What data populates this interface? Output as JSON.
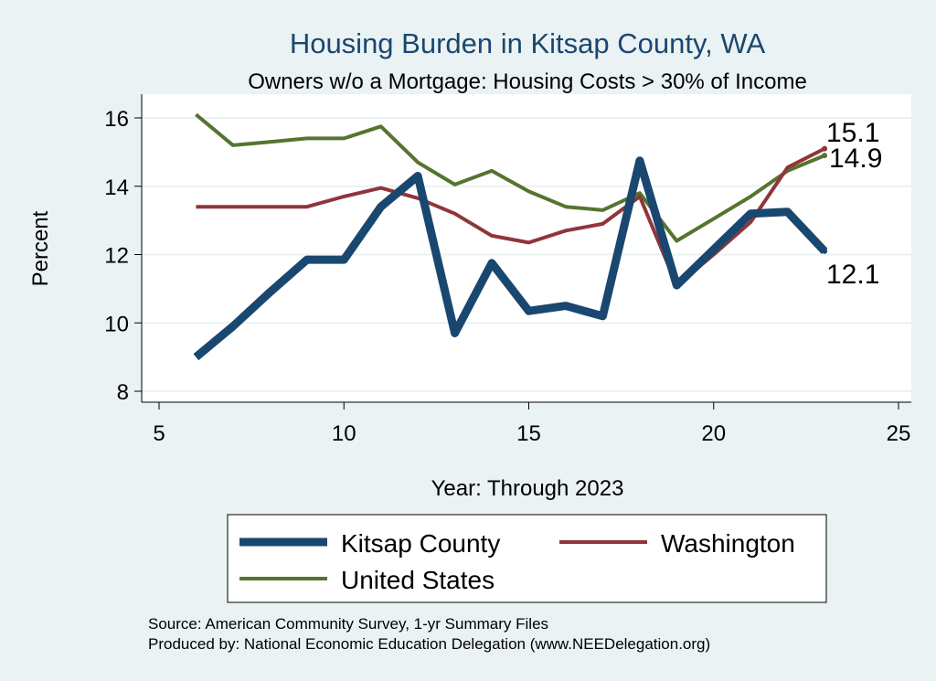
{
  "chart_data": {
    "type": "line",
    "title": "Housing Burden in Kitsap County, WA",
    "subtitle": "Owners w/o a Mortgage: Housing Costs > 30% of Income",
    "xlabel": "Year: Through 2023",
    "ylabel": "Percent",
    "xlim": [
      5,
      25
    ],
    "ylim": [
      7.5,
      16.5
    ],
    "xticks": [
      5,
      10,
      15,
      20,
      25
    ],
    "yticks": [
      8,
      10,
      12,
      14,
      16
    ],
    "grid": true,
    "legend_position": "bottom",
    "series": [
      {
        "name": "Kitsap County",
        "color": "#1a476f",
        "x": [
          6,
          7,
          8,
          9,
          10,
          11,
          12,
          13,
          14,
          15,
          16,
          17,
          18,
          19,
          20,
          21,
          22,
          23
        ],
        "values": [
          9.0,
          9.9,
          10.9,
          11.85,
          11.85,
          13.4,
          14.3,
          9.7,
          11.75,
          10.35,
          10.5,
          10.2,
          14.75,
          11.1,
          12.15,
          13.2,
          13.25,
          12.1
        ],
        "end_label": "12.1"
      },
      {
        "name": "Washington",
        "color": "#90353b",
        "x": [
          6,
          7,
          8,
          9,
          10,
          11,
          12,
          13,
          14,
          15,
          16,
          17,
          18,
          19,
          20,
          21,
          22,
          23
        ],
        "values": [
          13.4,
          13.4,
          13.4,
          13.4,
          13.7,
          13.95,
          13.65,
          13.2,
          12.55,
          12.35,
          12.7,
          12.9,
          13.7,
          11.1,
          12.0,
          12.95,
          14.55,
          15.1
        ],
        "end_label": "15.1"
      },
      {
        "name": "United States",
        "color": "#55752f",
        "x": [
          6,
          7,
          8,
          9,
          10,
          11,
          12,
          13,
          14,
          15,
          16,
          17,
          18,
          19,
          20,
          21,
          22,
          23
        ],
        "values": [
          16.1,
          15.2,
          15.3,
          15.4,
          15.4,
          15.75,
          14.7,
          14.05,
          14.45,
          13.85,
          13.4,
          13.3,
          13.8,
          12.4,
          13.05,
          13.7,
          14.45,
          14.9
        ],
        "end_label": "14.9"
      }
    ]
  },
  "source_lines": [
    "Source: American Community Survey, 1-yr Summary Files",
    "Produced by: National Economic Education Delegation (www.NEEDelegation.org)"
  ]
}
